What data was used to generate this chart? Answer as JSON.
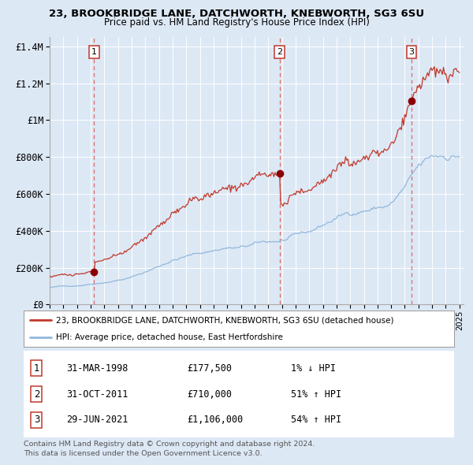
{
  "title": "23, BROOKBRIDGE LANE, DATCHWORTH, KNEBWORTH, SG3 6SU",
  "subtitle": "Price paid vs. HM Land Registry's House Price Index (HPI)",
  "ylim": [
    0,
    1450000
  ],
  "yticks": [
    0,
    200000,
    400000,
    600000,
    800000,
    1000000,
    1200000,
    1400000
  ],
  "ytick_labels": [
    "£0",
    "£200K",
    "£400K",
    "£600K",
    "£800K",
    "£1M",
    "£1.2M",
    "£1.4M"
  ],
  "bg_color": "#dde8f5",
  "plot_bg_color": "#dde8f5",
  "hpi_line_color": "#92b8dc",
  "price_line_color": "#c0392b",
  "marker_color": "#8b0000",
  "dashed_line_color": "#d9534f",
  "sale1_date": "31-MAR-1998",
  "sale1_price": 177500,
  "sale1_pct": "1%",
  "sale1_dir": "↓",
  "sale2_date": "31-OCT-2011",
  "sale2_price": 710000,
  "sale2_pct": "51%",
  "sale2_dir": "↑",
  "sale3_date": "29-JUN-2021",
  "sale3_price": 1106000,
  "sale3_pct": "54%",
  "sale3_dir": "↑",
  "footer1": "Contains HM Land Registry data © Crown copyright and database right 2024.",
  "footer2": "This data is licensed under the Open Government Licence v3.0.",
  "legend1": "23, BROOKBRIDGE LANE, DATCHWORTH, KNEBWORTH, SG3 6SU (detached house)",
  "legend2": "HPI: Average price, detached house, East Hertfordshire",
  "sale1_year": 1998.25,
  "sale2_year": 2011.83,
  "sale3_year": 2021.5
}
